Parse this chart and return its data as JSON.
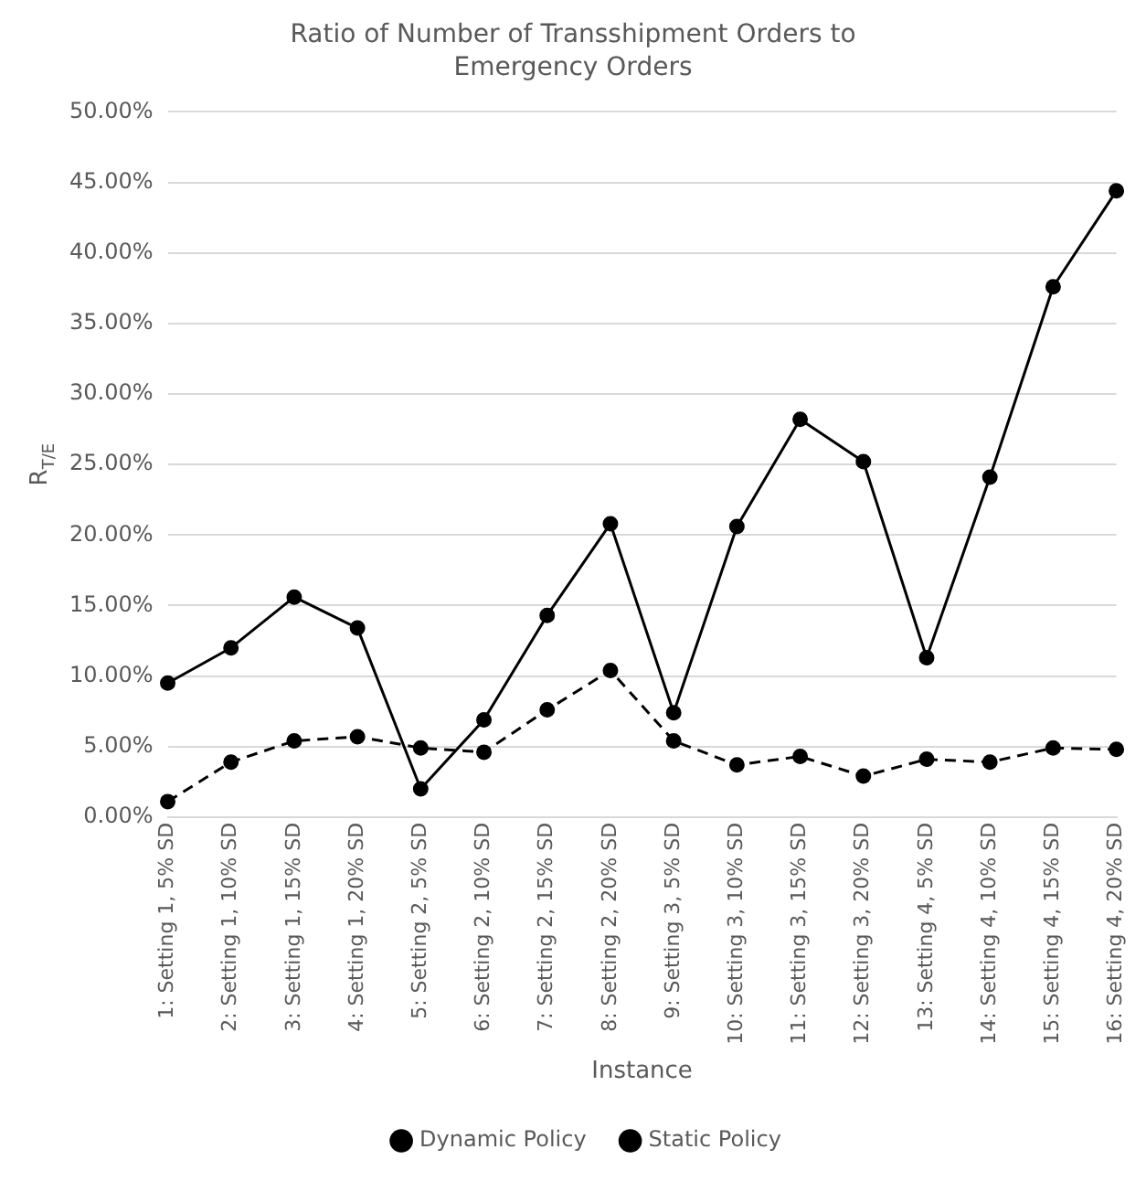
{
  "chart_data": {
    "type": "line",
    "title": "Ratio of Number of Transshipment Orders to Emergency Orders",
    "xlabel": "Instance",
    "ylabel": "R$_{T/E}$",
    "categories": [
      "1: Setting 1, 5% SD",
      "2: Setting 1, 10% SD",
      "3: Setting 1, 15% SD",
      "4: Setting 1, 20% SD",
      "5: Setting 2, 5% SD",
      "6: Setting 2, 10% SD",
      "7: Setting 2, 15% SD",
      "8: Setting 2, 20% SD",
      "9: Setting 3, 5% SD",
      "10: Setting 3, 10% SD",
      "11: Setting 3, 15% SD",
      "12: Setting 3, 20% SD",
      "13: Setting 4, 5% SD",
      "14: Setting 4, 10% SD",
      "15: Setting 4, 15% SD",
      "16: Setting 4, 20% SD"
    ],
    "series": [
      {
        "name": "Dynamic Policy",
        "color": "#000000",
        "line_style": "solid",
        "values": [
          9.5,
          12.0,
          15.6,
          13.4,
          2.0,
          6.9,
          14.3,
          20.8,
          7.4,
          20.6,
          28.2,
          25.2,
          11.3,
          24.1,
          37.6,
          44.4
        ]
      },
      {
        "name": "Static Policy",
        "color": "#000000",
        "line_style": "dashed",
        "values": [
          1.1,
          3.9,
          5.4,
          5.7,
          4.9,
          4.6,
          7.6,
          10.4,
          5.4,
          3.7,
          4.3,
          2.9,
          4.1,
          3.9,
          4.9,
          4.8
        ]
      }
    ],
    "ylim": [
      0,
      50
    ],
    "yticks": [
      {
        "value": 0,
        "label": "0.00%"
      },
      {
        "value": 5,
        "label": "5.00%"
      },
      {
        "value": 10,
        "label": "10.00%"
      },
      {
        "value": 15,
        "label": "15.00%"
      },
      {
        "value": 20,
        "label": "20.00%"
      },
      {
        "value": 25,
        "label": "25.00%"
      },
      {
        "value": 30,
        "label": "30.00%"
      },
      {
        "value": 35,
        "label": "35.00%"
      },
      {
        "value": 40,
        "label": "40.00%"
      },
      {
        "value": 45,
        "label": "45.00%"
      },
      {
        "value": 50,
        "label": "50.00%"
      }
    ],
    "grid": "y",
    "legend": "bottom",
    "marker": "circle"
  }
}
